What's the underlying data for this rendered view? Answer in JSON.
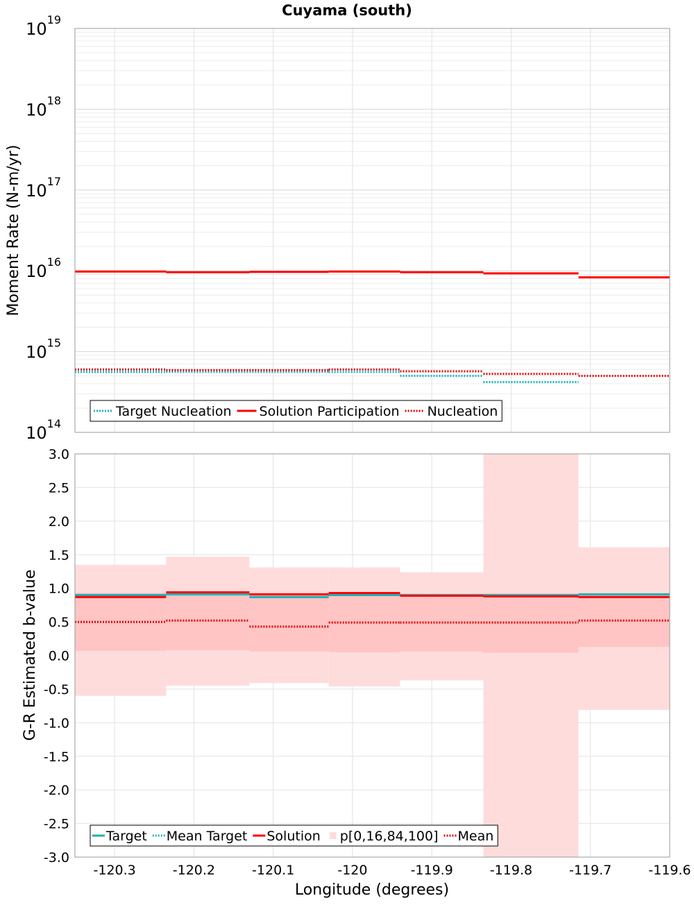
{
  "chart_data": [
    {
      "type": "line",
      "title": "Cuyama (south)",
      "xlabel": "",
      "ylabel": "Moment Rate (N-m/yr)",
      "yscale": "log",
      "ylim": [
        100000000000000.0,
        1e+19
      ],
      "xlim": [
        -120.35,
        -119.6
      ],
      "grid": true,
      "y_tick_labels": [
        {
          "base": "10",
          "exp": "14"
        },
        {
          "base": "10",
          "exp": "15"
        },
        {
          "base": "10",
          "exp": "16"
        },
        {
          "base": "10",
          "exp": "17"
        },
        {
          "base": "10",
          "exp": "18"
        },
        {
          "base": "10",
          "exp": "19"
        }
      ],
      "bin_edges": [
        -120.35,
        -120.235,
        -120.13,
        -120.03,
        -119.94,
        -119.835,
        -119.715,
        -119.6
      ],
      "series": [
        {
          "name": "Target Nucleation",
          "style": "dotted",
          "color": "#17b3c2",
          "values": [
            560000000000000.0,
            560000000000000.0,
            560000000000000.0,
            560000000000000.0,
            500000000000000.0,
            420000000000000.0,
            null
          ]
        },
        {
          "name": "Solution Participation",
          "style": "solid",
          "color": "#ff0000",
          "values": [
            9800000000000000.0,
            9600000000000000.0,
            9700000000000000.0,
            9800000000000000.0,
            9600000000000000.0,
            9300000000000000.0,
            8300000000000000.0
          ]
        },
        {
          "name": "Nucleation",
          "style": "dotted",
          "color": "#e00000",
          "values": [
            600000000000000.0,
            590000000000000.0,
            590000000000000.0,
            600000000000000.0,
            570000000000000.0,
            530000000000000.0,
            500000000000000.0
          ]
        }
      ],
      "legend": {
        "placement": "bottom-left",
        "items": [
          "Target Nucleation",
          "Solution Participation",
          "Nucleation"
        ]
      }
    },
    {
      "type": "line",
      "title": "",
      "xlabel": "Longitude (degrees)",
      "ylabel": "G-R Estimated b-value",
      "ylim": [
        -3.0,
        3.0
      ],
      "xlim": [
        -120.35,
        -119.6
      ],
      "grid": true,
      "y_ticks": [
        3.0,
        2.5,
        2.0,
        1.5,
        1.0,
        0.5,
        0.0,
        -0.5,
        -1.0,
        -1.5,
        -2.0,
        -2.5,
        -3.0
      ],
      "y_tick_labels": [
        "3.0",
        "2.5",
        "2.0",
        "1.5",
        "1.0",
        "0.5",
        "0.0",
        "-0.5",
        "-1.0",
        "-1.5",
        "-2.0",
        "-2.5",
        "-3.0"
      ],
      "x_ticks": [
        -120.3,
        -120.2,
        -120.1,
        -120.0,
        -119.9,
        -119.8,
        -119.7,
        -119.6
      ],
      "x_tick_labels": [
        "-120.3",
        "-120.2",
        "-120.1",
        "-120",
        "-119.9",
        "-119.8",
        "-119.7",
        "-119.6"
      ],
      "bin_edges": [
        -120.35,
        -120.235,
        -120.13,
        -120.03,
        -119.94,
        -119.835,
        -119.715,
        -119.6
      ],
      "percentile_bands": {
        "name": "p[0,16,84,100]",
        "outer_color": "#ffdcdc",
        "inner_color": "#ffc4c4",
        "p0": [
          -0.6,
          -0.45,
          -0.41,
          -0.46,
          -0.37,
          -3.0,
          -0.81
        ],
        "p16": [
          0.07,
          0.08,
          0.06,
          0.05,
          0.06,
          0.04,
          0.13
        ],
        "p84": [
          0.93,
          0.96,
          0.93,
          0.93,
          0.91,
          0.9,
          0.91
        ],
        "p100": [
          1.35,
          1.47,
          1.31,
          1.31,
          1.24,
          3.0,
          1.61
        ]
      },
      "series": [
        {
          "name": "Target",
          "style": "solid",
          "color": "#20b0a8",
          "values": [
            0.9,
            0.91,
            0.87,
            0.9,
            0.9,
            0.9,
            0.91
          ]
        },
        {
          "name": "Mean Target",
          "style": "dotted",
          "color": "#17b3c2",
          "values": [
            0.9,
            0.91,
            0.87,
            0.9,
            0.9,
            0.9,
            0.91
          ]
        },
        {
          "name": "Solution",
          "style": "solid",
          "color": "#ff0000",
          "values": [
            0.87,
            0.94,
            0.91,
            0.93,
            0.89,
            0.88,
            0.87
          ]
        },
        {
          "name": "Mean",
          "style": "dotted",
          "color": "#e00000",
          "values": [
            0.5,
            0.52,
            0.43,
            0.49,
            0.49,
            0.49,
            0.52
          ]
        }
      ],
      "legend": {
        "placement": "bottom-left",
        "items": [
          "Target",
          "Mean Target",
          "Solution",
          "p[0,16,84,100]",
          "Mean"
        ]
      }
    }
  ]
}
